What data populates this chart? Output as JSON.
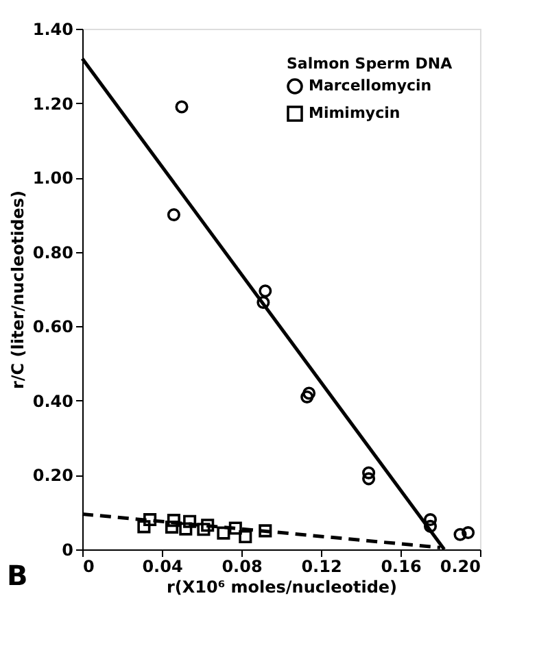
{
  "chart_data": {
    "type": "scatter",
    "xlabel": "r(X10⁶ moles/nucleotide)",
    "ylabel": "r/C (liter/nucleotides)",
    "legend_title": "Salmon Sperm DNA",
    "legend": "top right",
    "grid": false,
    "annotations": [
      "B"
    ],
    "xlim": [
      0,
      0.2
    ],
    "ylim": [
      0,
      1.4
    ],
    "xticks": [
      0,
      0.04,
      0.08,
      0.12,
      0.16,
      {
        "value": 0.2,
        "label": "0.20"
      }
    ],
    "yticks": [
      0,
      {
        "value": 0.2,
        "label": "0.20"
      },
      {
        "value": 0.4,
        "label": "0.40"
      },
      {
        "value": 0.6,
        "label": "0.60"
      },
      {
        "value": 0.8,
        "label": "0.80"
      },
      {
        "value": 1.0,
        "label": "1.00"
      },
      {
        "value": 1.2,
        "label": "1.20"
      },
      {
        "value": 1.4,
        "label": "1.40"
      }
    ],
    "series": [
      {
        "name": "Marcellomycin",
        "type": "scatter",
        "marker": "circle",
        "color": "#000000",
        "x": [
          0.05,
          0.046,
          0.092,
          0.091,
          0.114,
          0.113,
          0.144,
          0.144,
          0.175,
          0.175,
          0.19,
          0.194
        ],
        "values": [
          1.19,
          0.9,
          0.695,
          0.664,
          0.42,
          0.41,
          0.206,
          0.19,
          0.08,
          0.062,
          0.04,
          0.045
        ]
      },
      {
        "name": "Mimimycin",
        "type": "scatter",
        "marker": "square",
        "color": "#000000",
        "x": [
          0.031,
          0.034,
          0.045,
          0.046,
          0.052,
          0.054,
          0.061,
          0.063,
          0.071,
          0.077,
          0.082,
          0.092
        ],
        "values": [
          0.061,
          0.08,
          0.06,
          0.078,
          0.055,
          0.075,
          0.054,
          0.065,
          0.044,
          0.057,
          0.034,
          0.05
        ]
      },
      {
        "type": "line",
        "line_style": "solid",
        "color": "#000000",
        "x": [
          0,
          0.182
        ],
        "values": [
          1.32,
          0
        ]
      },
      {
        "type": "line",
        "line_style": "dashed",
        "color": "#000000",
        "x": [
          0,
          0.18
        ],
        "values": [
          0.095,
          0.005
        ]
      }
    ]
  }
}
